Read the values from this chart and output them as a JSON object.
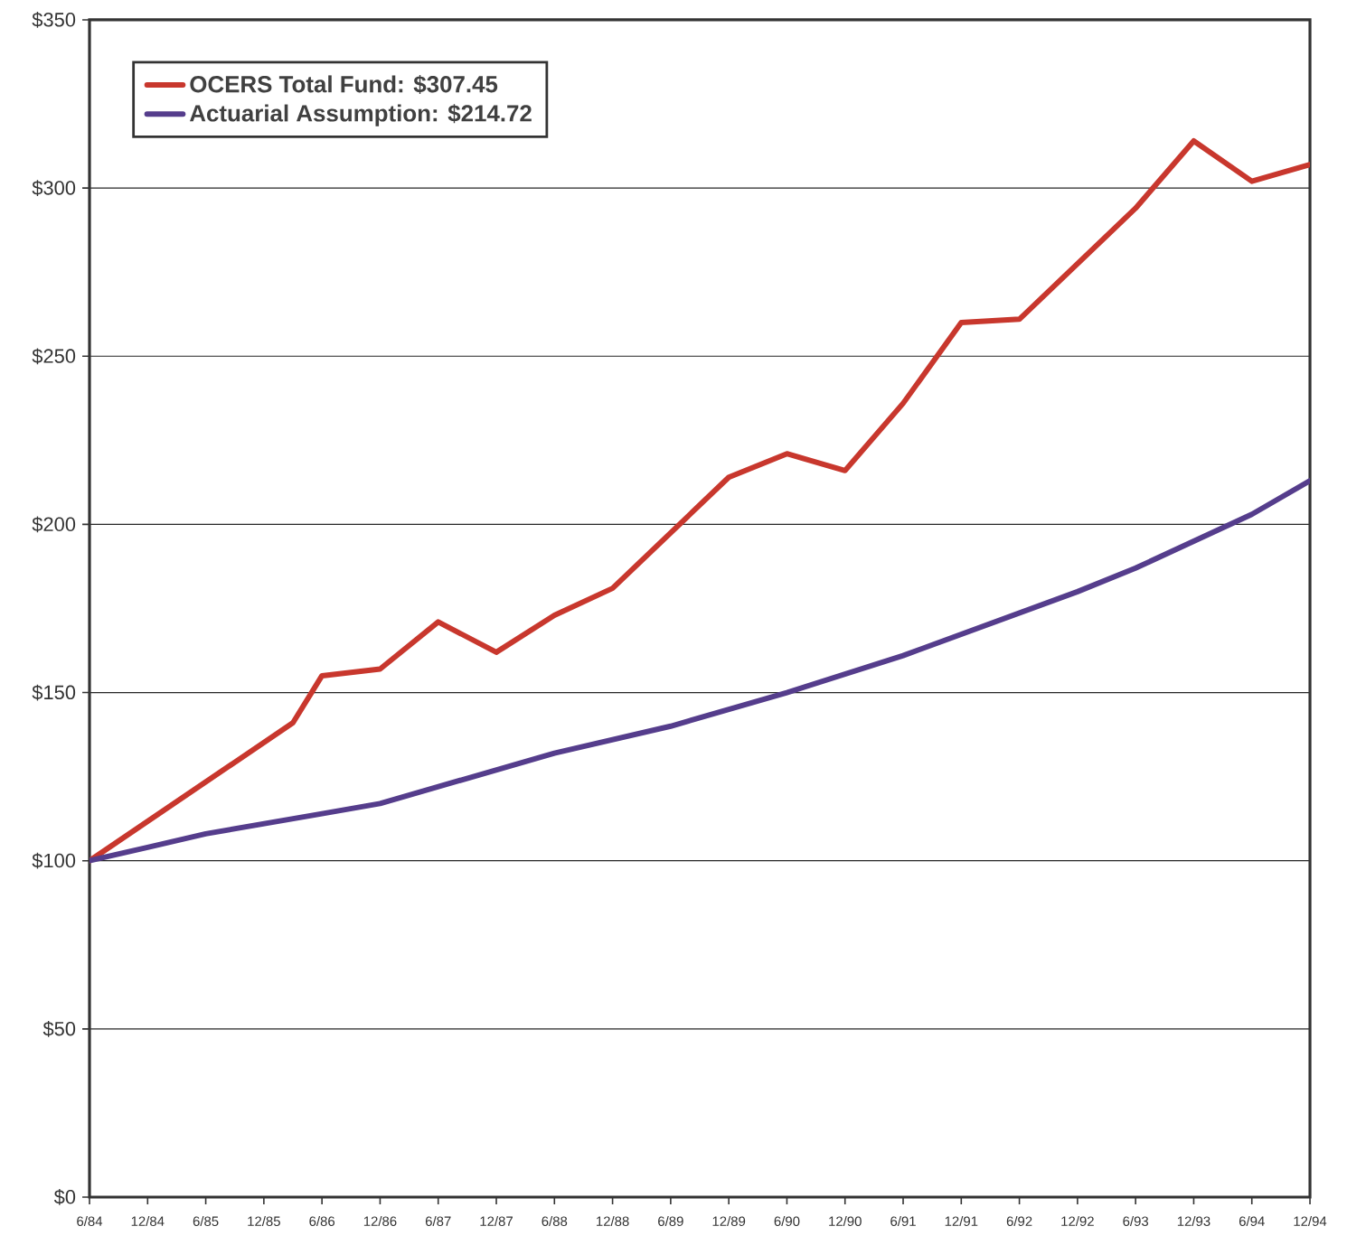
{
  "chart_data": {
    "type": "line",
    "series": [
      {
        "name": "OCERS Total Fund: $307.45",
        "color": "#c8372d",
        "x": [
          "1984-06",
          "1986-03",
          "1986-06",
          "1986-12",
          "1987-06",
          "1987-12",
          "1988-06",
          "1988-12",
          "1989-12",
          "1990-06",
          "1990-12",
          "1991-06",
          "1991-12",
          "1992-06",
          "1993-06",
          "1993-12",
          "1994-06",
          "1994-12"
        ],
        "values": [
          100,
          141,
          155,
          157,
          171,
          162,
          173,
          181,
          214,
          221,
          216,
          236,
          260,
          261,
          294,
          314,
          302,
          307
        ]
      },
      {
        "name": "Actuarial Assumption: $214.72",
        "color": "#553d8c",
        "x": [
          "1984-06",
          "1984-12",
          "1985-06",
          "1986-06",
          "1986-12",
          "1988-06",
          "1989-06",
          "1990-06",
          "1991-06",
          "1992-12",
          "1993-06",
          "1994-06",
          "1994-12"
        ],
        "values": [
          100,
          104,
          108,
          114,
          117,
          132,
          140,
          150,
          161,
          180,
          187,
          203,
          213
        ]
      }
    ],
    "xlim": [
      "1984-06",
      "1994-12"
    ],
    "xticks": [
      {
        "value": "1984-06",
        "label": "6/84"
      },
      {
        "value": "1984-12",
        "label": "12/84"
      },
      {
        "value": "1985-06",
        "label": "6/85"
      },
      {
        "value": "1985-12",
        "label": "12/85"
      },
      {
        "value": "1986-06",
        "label": "6/86"
      },
      {
        "value": "1986-12",
        "label": "12/86"
      },
      {
        "value": "1987-06",
        "label": "6/87"
      },
      {
        "value": "1987-12",
        "label": "12/87"
      },
      {
        "value": "1988-06",
        "label": "6/88"
      },
      {
        "value": "1988-12",
        "label": "12/88"
      },
      {
        "value": "1989-06",
        "label": "6/89"
      },
      {
        "value": "1989-12",
        "label": "12/89"
      },
      {
        "value": "1990-06",
        "label": "6/90"
      },
      {
        "value": "1990-12",
        "label": "12/90"
      },
      {
        "value": "1991-06",
        "label": "6/91"
      },
      {
        "value": "1991-12",
        "label": "12/91"
      },
      {
        "value": "1992-06",
        "label": "6/92"
      },
      {
        "value": "1992-12",
        "label": "12/92"
      },
      {
        "value": "1993-06",
        "label": "6/93"
      },
      {
        "value": "1993-12",
        "label": "12/93"
      },
      {
        "value": "1994-06",
        "label": "6/94"
      },
      {
        "value": "1994-12",
        "label": "12/94"
      }
    ],
    "ylim": [
      0,
      350
    ],
    "yticks": [
      {
        "value": 0,
        "label": "$0"
      },
      {
        "value": 50,
        "label": "$50"
      },
      {
        "value": 100,
        "label": "$100"
      },
      {
        "value": 150,
        "label": "$150"
      },
      {
        "value": 200,
        "label": "$200"
      },
      {
        "value": 250,
        "label": "$250"
      },
      {
        "value": 300,
        "label": "$300"
      },
      {
        "value": 350,
        "label": "$350"
      }
    ],
    "grid": "y",
    "legend": "top left",
    "line_style": "solid"
  }
}
